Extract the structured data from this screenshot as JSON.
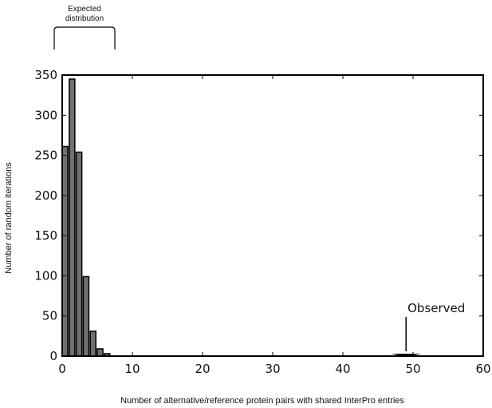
{
  "chart_data": {
    "type": "bar",
    "xlabel": "Number of alternative/reference protein pairs with shared InterPro entries",
    "ylabel": "Number of random iterations",
    "xlim": [
      0,
      60
    ],
    "ylim": [
      0,
      350
    ],
    "xticks": [
      "0",
      "10",
      "20",
      "30",
      "40",
      "50",
      "60"
    ],
    "yticks": [
      "0",
      "50",
      "100",
      "150",
      "200",
      "250",
      "300",
      "350"
    ],
    "x": [
      0,
      1,
      2,
      3,
      4,
      5,
      6
    ],
    "values": [
      261,
      345,
      254,
      99,
      31,
      9,
      3
    ],
    "bar_width": 0.8,
    "bar_color": "#707070",
    "grid": false,
    "annotations": {
      "expected": "Expected distribution",
      "observed": "Observed",
      "observed_x": 49
    }
  }
}
